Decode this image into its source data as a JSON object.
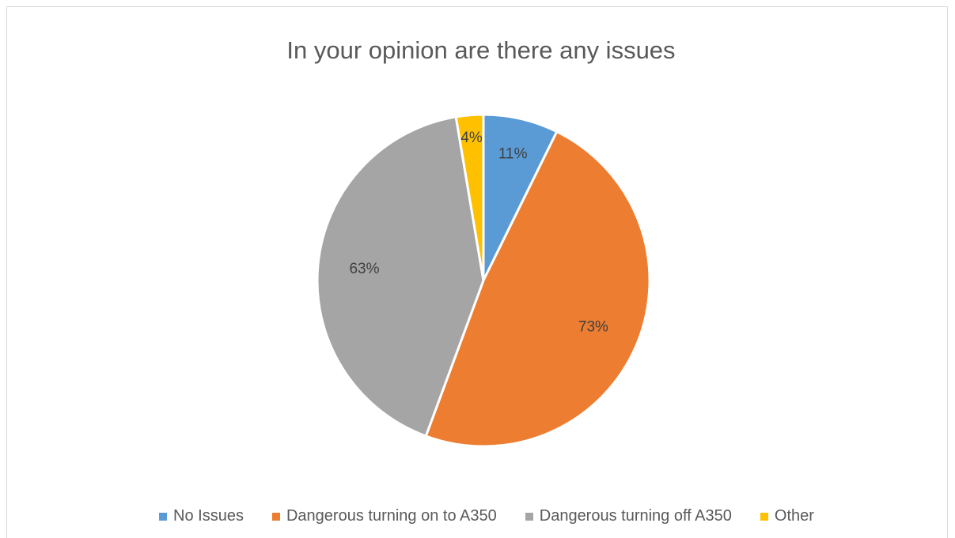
{
  "chart_data": {
    "type": "pie",
    "title": "In your opinion are there any issues",
    "legend_position": "bottom",
    "slices": [
      {
        "name": "No Issues",
        "value": 11,
        "label": "11%",
        "color": "#5b9bd5"
      },
      {
        "name": "Dangerous turning on to A350",
        "value": 73,
        "label": "73%",
        "color": "#ed7d31"
      },
      {
        "name": "Dangerous turning off A350",
        "value": 63,
        "label": "63%",
        "color": "#a5a5a5"
      },
      {
        "name": "Other",
        "value": 4,
        "label": "4%",
        "color": "#ffc000"
      }
    ]
  }
}
